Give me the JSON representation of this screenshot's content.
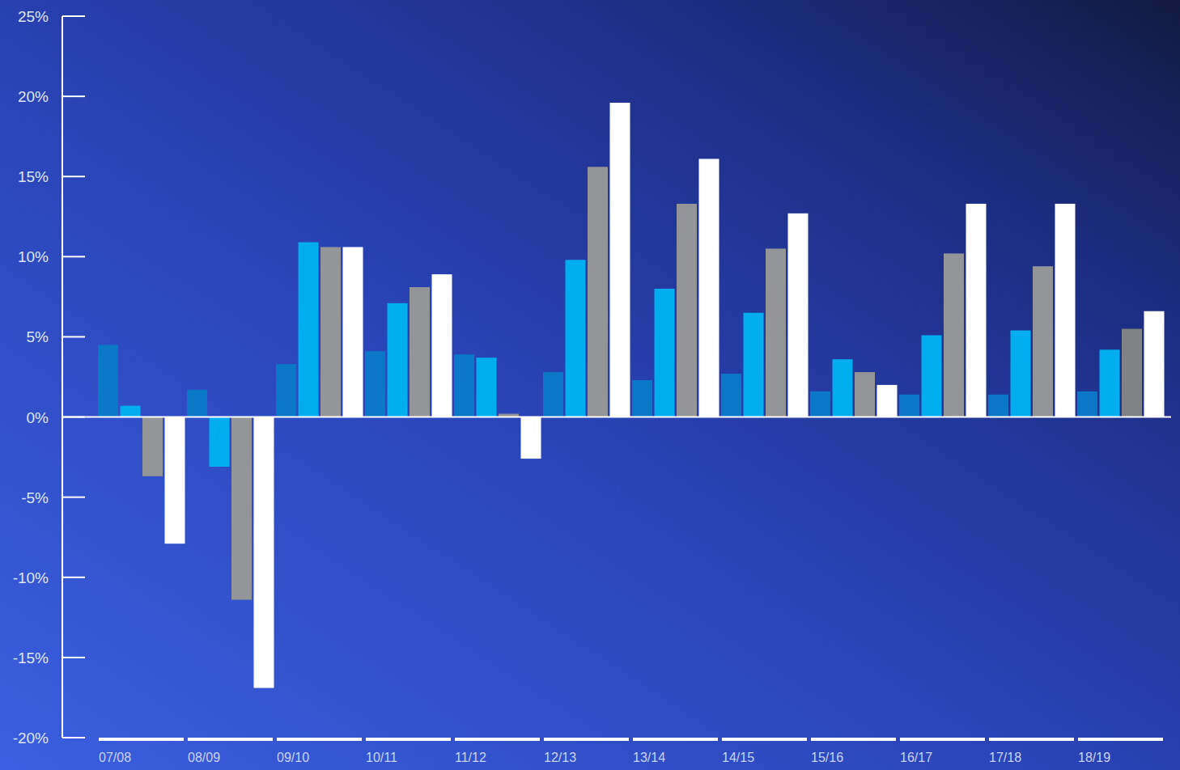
{
  "chart_data": {
    "type": "bar",
    "categories": [
      "07/08",
      "08/09",
      "09/10",
      "10/11",
      "11/12",
      "12/13",
      "13/14",
      "14/15",
      "15/16",
      "16/17",
      "17/18",
      "18/19"
    ],
    "series": [
      {
        "color": "#0a78c6",
        "values": [
          4.5,
          1.7,
          3.3,
          4.1,
          3.9,
          2.8,
          2.3,
          2.7,
          1.6,
          1.4,
          1.4,
          1.6
        ]
      },
      {
        "color": "#00aeef",
        "values": [
          0.7,
          -3.1,
          10.9,
          7.1,
          3.7,
          9.8,
          8.0,
          6.5,
          3.6,
          5.1,
          5.4,
          4.2
        ]
      },
      {
        "color": "#939598",
        "colors": [
          "#939598",
          "#939598",
          "#939598",
          "#939598",
          "#939598",
          "#939598",
          "#939598",
          "#939598",
          "#939598",
          "#939598",
          "#939598",
          "#808285"
        ],
        "values": [
          -3.7,
          -11.4,
          10.6,
          8.1,
          0.2,
          15.6,
          13.3,
          10.5,
          2.8,
          10.2,
          9.4,
          5.5
        ]
      },
      {
        "color": "#ffffff",
        "values": [
          -7.9,
          -16.9,
          10.6,
          8.9,
          -2.6,
          19.6,
          16.1,
          12.7,
          2.0,
          13.3,
          13.3,
          6.6
        ]
      }
    ],
    "ylim": [
      -20,
      25
    ],
    "yticks": [
      {
        "value": -20,
        "label": "-20%"
      },
      {
        "value": -15,
        "label": "-15%"
      },
      {
        "value": -10,
        "label": "-10%"
      },
      {
        "value": -5,
        "label": "-5%"
      },
      {
        "value": 0,
        "label": "0%"
      },
      {
        "value": 5,
        "label": "5%"
      },
      {
        "value": 10,
        "label": "10%"
      },
      {
        "value": 15,
        "label": "15%"
      },
      {
        "value": 20,
        "label": "20%"
      },
      {
        "value": 25,
        "label": "25%"
      }
    ],
    "grid": false
  }
}
